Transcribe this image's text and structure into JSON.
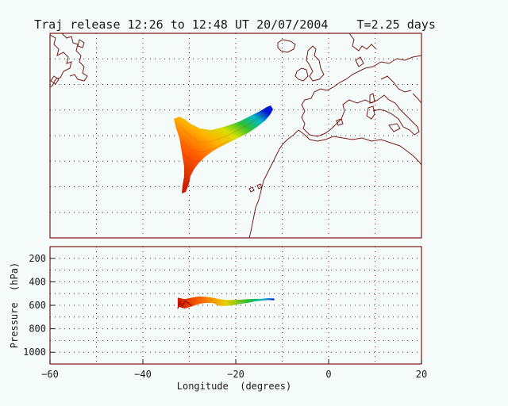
{
  "title": "Traj release 12:26 to 12:48 UT 20/07/2004    T=2.25 days",
  "colors": {
    "background": "#f5fbf8",
    "frame": "#7a1a1a",
    "grid": "#7a1a1a",
    "coast": "#7a1a1a",
    "text": "#1a1a1a"
  },
  "map_panel": {
    "grid": true,
    "content": "trajectory-cloud-over-north-atlantic"
  },
  "chart_data": {
    "type": "scatter",
    "title": "",
    "xlabel": "Longitude  (degrees)",
    "ylabel": "Pressure  (hPa)",
    "xlim": [
      -60,
      20
    ],
    "ylim": [
      1100,
      100
    ],
    "y_reversed": true,
    "x_ticks": [
      -60,
      -40,
      -20,
      0,
      20
    ],
    "y_ticks": [
      200,
      400,
      600,
      800,
      1000
    ],
    "x_tick_labels": [
      "−60",
      "−40",
      "−20",
      "0",
      "20"
    ],
    "y_tick_labels": [
      "200",
      "400",
      "600",
      "800",
      "1000"
    ],
    "band": {
      "longitude": [
        -32.5,
        -31,
        -29.5,
        -28,
        -26.5,
        -25,
        -23.5,
        -22,
        -20.5,
        -19,
        -17.5,
        -16,
        -14.5,
        -13,
        -11.7
      ],
      "pressure_top": [
        535,
        548,
        535,
        525,
        528,
        535,
        548,
        555,
        555,
        552,
        548,
        545,
        545,
        540,
        542
      ],
      "pressure_bottom": [
        610,
        628,
        610,
        590,
        580,
        580,
        605,
        605,
        598,
        588,
        580,
        568,
        560,
        555,
        558
      ]
    }
  }
}
